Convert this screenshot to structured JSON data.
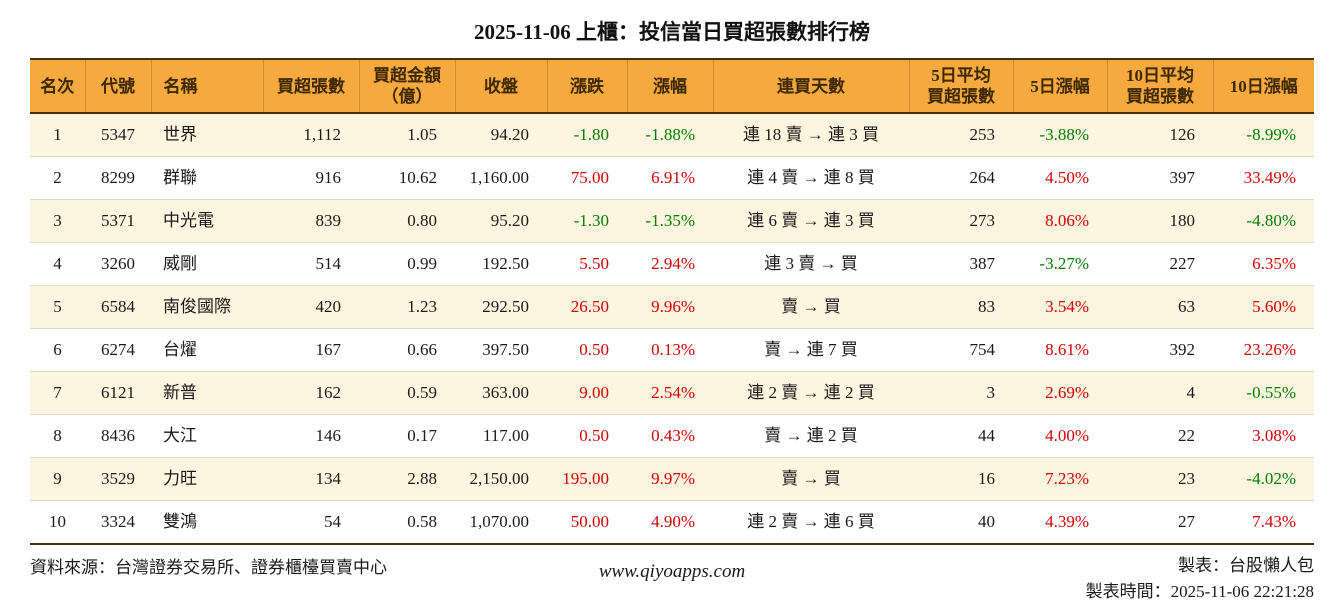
{
  "title": "2025-11-06 上櫃：投信當日買超張數排行榜",
  "colors": {
    "header_bg": "#f5a93f",
    "row_alt_bg": "#fdf5df",
    "up_red": "#d40000",
    "down_green": "#007f00",
    "border_dark": "#4a3004"
  },
  "table": {
    "columns": [
      "名次",
      "代號",
      "名稱",
      "買超張數",
      "買超金額\n（億）",
      "收盤",
      "漲跌",
      "漲幅",
      "連買天數",
      "5日平均\n買超張數",
      "5日漲幅",
      "10日平均\n買超張數",
      "10日漲幅"
    ],
    "rows": [
      {
        "rank": "1",
        "code": "5347",
        "name": "世界",
        "volume": "1,112",
        "amount": "1.05",
        "close": "94.20",
        "change": "-1.80",
        "change_pct": "-1.88%",
        "streak": "連 18 賣 → 連 3 買",
        "avg5": "253",
        "pct5": "-3.88%",
        "avg10": "126",
        "pct10": "-8.99%"
      },
      {
        "rank": "2",
        "code": "8299",
        "name": "群聯",
        "volume": "916",
        "amount": "10.62",
        "close": "1,160.00",
        "change": "75.00",
        "change_pct": "6.91%",
        "streak": "連 4 賣 → 連 8 買",
        "avg5": "264",
        "pct5": "4.50%",
        "avg10": "397",
        "pct10": "33.49%"
      },
      {
        "rank": "3",
        "code": "5371",
        "name": "中光電",
        "volume": "839",
        "amount": "0.80",
        "close": "95.20",
        "change": "-1.30",
        "change_pct": "-1.35%",
        "streak": "連 6 賣 → 連 3 買",
        "avg5": "273",
        "pct5": "8.06%",
        "avg10": "180",
        "pct10": "-4.80%"
      },
      {
        "rank": "4",
        "code": "3260",
        "name": "威剛",
        "volume": "514",
        "amount": "0.99",
        "close": "192.50",
        "change": "5.50",
        "change_pct": "2.94%",
        "streak": "連 3 賣 → 買",
        "avg5": "387",
        "pct5": "-3.27%",
        "avg10": "227",
        "pct10": "6.35%"
      },
      {
        "rank": "5",
        "code": "6584",
        "name": "南俊國際",
        "volume": "420",
        "amount": "1.23",
        "close": "292.50",
        "change": "26.50",
        "change_pct": "9.96%",
        "streak": "賣 → 買",
        "avg5": "83",
        "pct5": "3.54%",
        "avg10": "63",
        "pct10": "5.60%"
      },
      {
        "rank": "6",
        "code": "6274",
        "name": "台燿",
        "volume": "167",
        "amount": "0.66",
        "close": "397.50",
        "change": "0.50",
        "change_pct": "0.13%",
        "streak": "賣 → 連 7 買",
        "avg5": "754",
        "pct5": "8.61%",
        "avg10": "392",
        "pct10": "23.26%"
      },
      {
        "rank": "7",
        "code": "6121",
        "name": "新普",
        "volume": "162",
        "amount": "0.59",
        "close": "363.00",
        "change": "9.00",
        "change_pct": "2.54%",
        "streak": "連 2 賣 → 連 2 買",
        "avg5": "3",
        "pct5": "2.69%",
        "avg10": "4",
        "pct10": "-0.55%"
      },
      {
        "rank": "8",
        "code": "8436",
        "name": "大江",
        "volume": "146",
        "amount": "0.17",
        "close": "117.00",
        "change": "0.50",
        "change_pct": "0.43%",
        "streak": "賣 → 連 2 買",
        "avg5": "44",
        "pct5": "4.00%",
        "avg10": "22",
        "pct10": "3.08%"
      },
      {
        "rank": "9",
        "code": "3529",
        "name": "力旺",
        "volume": "134",
        "amount": "2.88",
        "close": "2,150.00",
        "change": "195.00",
        "change_pct": "9.97%",
        "streak": "賣 → 買",
        "avg5": "16",
        "pct5": "7.23%",
        "avg10": "23",
        "pct10": "-4.02%"
      },
      {
        "rank": "10",
        "code": "3324",
        "name": "雙鴻",
        "volume": "54",
        "amount": "0.58",
        "close": "1,070.00",
        "change": "50.00",
        "change_pct": "4.90%",
        "streak": "連 2 賣 → 連 6 買",
        "avg5": "40",
        "pct5": "4.39%",
        "avg10": "27",
        "pct10": "7.43%"
      }
    ]
  },
  "footer": {
    "source": "資料來源：台灣證券交易所、證券櫃檯買賣中心",
    "website": "www.qiyoapps.com",
    "author": "製表：台股懶人包",
    "timestamp": "製表時間：2025-11-06 22:21:28"
  }
}
